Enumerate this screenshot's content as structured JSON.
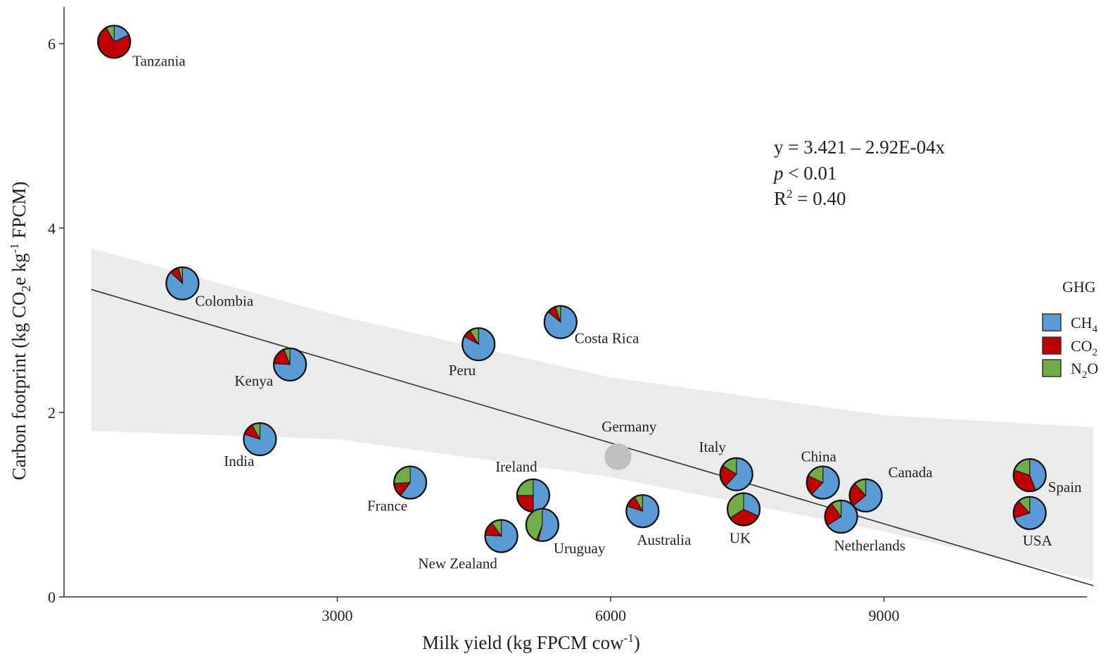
{
  "chart_data": {
    "type": "scatter",
    "xlabel": "Milk yield (kg FPCM cow",
    "xlabel_sup": "-1",
    "xlabel_tail": ")",
    "ylabel_parts": [
      "Carbon footprint (kg CO",
      "2",
      "e kg",
      "-1",
      " FPCM)"
    ],
    "xlim": [
      0,
      11800
    ],
    "ylim": [
      0,
      6.4
    ],
    "x_ticks": [
      3000,
      6000,
      9000
    ],
    "x_tick_labels": [
      "3000",
      "6000",
      "9000"
    ],
    "y_ticks": [
      0,
      2,
      4,
      6
    ],
    "y_tick_labels": [
      "0",
      "2",
      "4",
      "6"
    ],
    "grid": false,
    "regression": {
      "intercept": 3.421,
      "slope": -0.000292,
      "x_range": [
        300,
        11300
      ],
      "ci_upper": [
        [
          300,
          3.78
        ],
        [
          3000,
          3.05
        ],
        [
          6000,
          2.38
        ],
        [
          9000,
          1.97
        ],
        [
          11300,
          1.84
        ]
      ],
      "ci_lower": [
        [
          300,
          1.8
        ],
        [
          3000,
          1.71
        ],
        [
          6000,
          1.3
        ],
        [
          9000,
          0.71
        ],
        [
          11300,
          0.18
        ]
      ],
      "line_color": "#333333",
      "band_color": "#ebebeb"
    },
    "equation": {
      "line1": "y = 3.421 – 2.92E-04x",
      "line2_italic": "p",
      "line2_rest": " < 0.01",
      "line3_pre": "R",
      "line3_sup": "2",
      "line3_post": " = 0.40"
    },
    "legend": {
      "title": "GHG",
      "placement": "right",
      "items": [
        {
          "base": "CH",
          "sub": "4",
          "color": "#5b9bd5"
        },
        {
          "base": "CO",
          "sub": "2",
          "color": "#c00000"
        },
        {
          "base": "N",
          "sub": "2",
          "tail": "O",
          "color": "#70ad47"
        }
      ]
    },
    "colors": {
      "CH4": "#5b9bd5",
      "CO2": "#c00000",
      "N2O": "#70ad47",
      "no_data": "#bfbfbf"
    },
    "points": [
      {
        "country": "Tanzania",
        "x": 550,
        "y": 6.02,
        "shares": [
          0.18,
          0.74,
          0.08
        ]
      },
      {
        "country": "Colombia",
        "x": 1300,
        "y": 3.4,
        "shares": [
          0.87,
          0.09,
          0.04
        ]
      },
      {
        "country": "Kenya",
        "x": 2480,
        "y": 2.52,
        "shares": [
          0.76,
          0.18,
          0.06
        ]
      },
      {
        "country": "India",
        "x": 2150,
        "y": 1.71,
        "shares": [
          0.8,
          0.12,
          0.08
        ]
      },
      {
        "country": "France",
        "x": 3800,
        "y": 1.24,
        "shares": [
          0.6,
          0.14,
          0.26
        ]
      },
      {
        "country": "Peru",
        "x": 4550,
        "y": 2.74,
        "shares": [
          0.83,
          0.08,
          0.09
        ]
      },
      {
        "country": "Costa Rica",
        "x": 5450,
        "y": 2.98,
        "shares": [
          0.86,
          0.09,
          0.05
        ]
      },
      {
        "country": "Ireland",
        "x": 5150,
        "y": 1.1,
        "shares": [
          0.5,
          0.25,
          0.25
        ]
      },
      {
        "country": "New Zealand",
        "x": 4800,
        "y": 0.66,
        "shares": [
          0.76,
          0.14,
          0.1
        ]
      },
      {
        "country": "Uruguay",
        "x": 5250,
        "y": 0.78,
        "shares": [
          0.54,
          0.02,
          0.44
        ]
      },
      {
        "country": "Germany",
        "x": 6080,
        "y": 1.52,
        "shares": []
      },
      {
        "country": "Australia",
        "x": 6350,
        "y": 0.93,
        "shares": [
          0.8,
          0.12,
          0.08
        ]
      },
      {
        "country": "Italy",
        "x": 7380,
        "y": 1.33,
        "shares": [
          0.62,
          0.22,
          0.16
        ]
      },
      {
        "country": "UK",
        "x": 7460,
        "y": 0.95,
        "shares": [
          0.32,
          0.34,
          0.34
        ]
      },
      {
        "country": "China",
        "x": 8330,
        "y": 1.24,
        "shares": [
          0.62,
          0.2,
          0.18
        ]
      },
      {
        "country": "Canada",
        "x": 8800,
        "y": 1.1,
        "shares": [
          0.64,
          0.24,
          0.12
        ]
      },
      {
        "country": "Netherlands",
        "x": 8530,
        "y": 0.87,
        "shares": [
          0.66,
          0.24,
          0.1
        ]
      },
      {
        "country": "Spain",
        "x": 10600,
        "y": 1.32,
        "shares": [
          0.44,
          0.36,
          0.2
        ]
      },
      {
        "country": "USA",
        "x": 10600,
        "y": 0.91,
        "shares": [
          0.7,
          0.18,
          0.12
        ]
      }
    ]
  }
}
